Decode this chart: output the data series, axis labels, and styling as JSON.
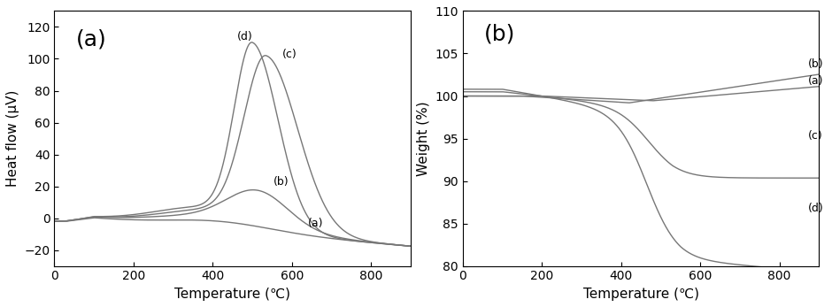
{
  "panel_a": {
    "label": "(a)",
    "xlabel": "Temperature (℃)",
    "ylabel": "Heat flow (μV)",
    "xlim": [
      0,
      900
    ],
    "ylim": [
      -30,
      130
    ],
    "yticks": [
      -20,
      0,
      20,
      40,
      60,
      80,
      100,
      120
    ],
    "xticks": [
      0,
      200,
      400,
      600,
      800
    ]
  },
  "panel_b": {
    "label": "(b)",
    "xlabel": "Temperature (℃)",
    "ylabel": "Weight (%)",
    "xlim": [
      0,
      900
    ],
    "ylim": [
      80,
      110
    ],
    "yticks": [
      80,
      85,
      90,
      95,
      100,
      105,
      110
    ],
    "xticks": [
      0,
      200,
      400,
      600,
      800
    ]
  },
  "line_color": "#777777",
  "font_size": 11,
  "label_font_size": 18,
  "tick_font_size": 10
}
